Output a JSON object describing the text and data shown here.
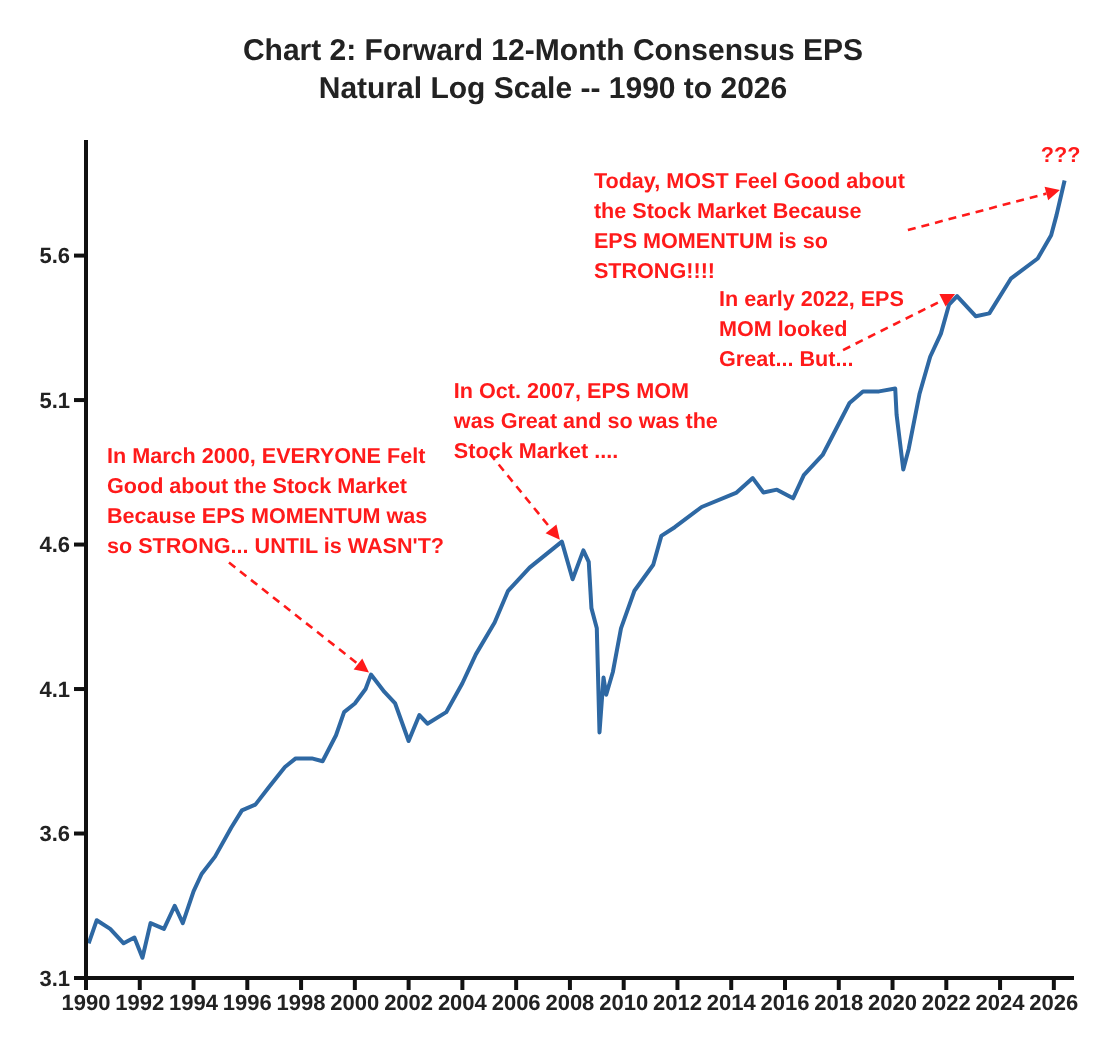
{
  "chart_data": {
    "type": "line",
    "title": "Chart 2: Forward 12-Month Consensus EPS",
    "subtitle": "Natural Log Scale -- 1990 to 2026",
    "x": [
      1990.1,
      1990.4,
      1990.9,
      1991.4,
      1991.8,
      1992.1,
      1992.4,
      1992.9,
      1993.3,
      1993.6,
      1994.0,
      1994.3,
      1994.8,
      1995.4,
      1995.8,
      1996.3,
      1996.8,
      1997.4,
      1997.8,
      1998.4,
      1998.8,
      1999.3,
      1999.6,
      2000.0,
      2000.4,
      2000.6,
      2001.1,
      2001.5,
      2002.0,
      2002.4,
      2002.7,
      2003.4,
      2004.0,
      2004.5,
      2005.2,
      2005.7,
      2006.5,
      2007.7,
      2008.1,
      2008.5,
      2008.7,
      2008.8,
      2009.0,
      2009.1,
      2009.25,
      2009.35,
      2009.6,
      2009.9,
      2010.4,
      2011.1,
      2011.4,
      2011.9,
      2012.9,
      2014.2,
      2014.8,
      2015.2,
      2015.7,
      2016.3,
      2016.7,
      2017.4,
      2017.9,
      2018.4,
      2018.9,
      2019.5,
      2020.1,
      2020.15,
      2020.4,
      2020.6,
      2021.0,
      2021.4,
      2021.8,
      2022.1,
      2022.4,
      2023.1,
      2023.6,
      2024.4,
      2025.4,
      2025.9,
      2026.1,
      2026.4
    ],
    "series": [
      {
        "color": "#2e68a3",
        "values": [
          3.22,
          3.3,
          3.27,
          3.22,
          3.24,
          3.17,
          3.29,
          3.27,
          3.35,
          3.29,
          3.4,
          3.46,
          3.52,
          3.62,
          3.68,
          3.7,
          3.76,
          3.83,
          3.86,
          3.86,
          3.85,
          3.94,
          4.02,
          4.05,
          4.1,
          4.15,
          4.09,
          4.05,
          3.92,
          4.01,
          3.98,
          4.02,
          4.12,
          4.22,
          4.33,
          4.44,
          4.52,
          4.61,
          4.48,
          4.58,
          4.54,
          4.38,
          4.31,
          3.95,
          4.14,
          4.08,
          4.16,
          4.31,
          4.44,
          4.53,
          4.63,
          4.66,
          4.73,
          4.78,
          4.83,
          4.78,
          4.79,
          4.76,
          4.84,
          4.91,
          5.0,
          5.09,
          5.13,
          5.13,
          5.14,
          5.05,
          4.86,
          4.93,
          5.12,
          5.25,
          5.33,
          5.43,
          5.46,
          5.39,
          5.4,
          5.52,
          5.59,
          5.67,
          5.74,
          5.86
        ]
      }
    ],
    "xlim": [
      1990,
      2026.75
    ],
    "xticks": [
      1990,
      1992,
      1994,
      1996,
      1998,
      2000,
      2002,
      2004,
      2006,
      2008,
      2010,
      2012,
      2014,
      2016,
      2018,
      2020,
      2022,
      2024,
      2026
    ],
    "ylim": [
      3.1,
      6.0
    ],
    "yticks": [
      3.1,
      3.6,
      4.1,
      4.6,
      5.1,
      5.6
    ],
    "annotations": [
      {
        "text": "In March 2000, EVERYONE Felt\nGood about the Stock Market\nBecause EPS MOMENTUM was\nso STRONG... UNTIL is WASN'T?",
        "x": 2000.6,
        "y": 4.15
      },
      {
        "text": "In Oct. 2007, EPS MOM\nwas Great and so was the\nStock Market ....",
        "x": 2007.7,
        "y": 4.61
      },
      {
        "text": "In early 2022, EPS\nMOM looked\nGreat... But...",
        "x": 2022.4,
        "y": 5.46
      },
      {
        "text": "Today, MOST Feel Good about\nthe Stock Market Because\nEPS MOMENTUM is so\nSTRONG!!!!",
        "x": 2026.3,
        "y": 5.82
      },
      {
        "text": "???",
        "x": 2026.4,
        "y": 5.86
      }
    ]
  }
}
